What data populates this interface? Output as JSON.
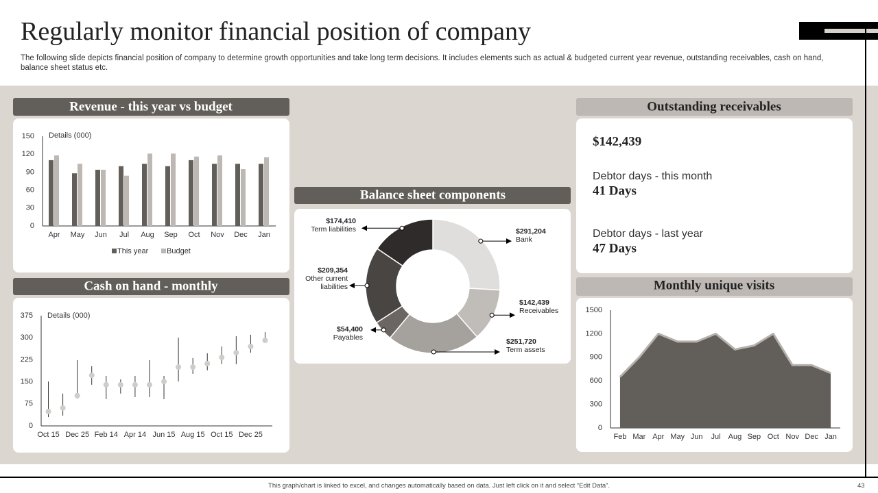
{
  "header": {
    "title": "Regularly monitor financial position of company",
    "subtitle": "The following slide depicts financial position of company to determine growth opportunities and take long term decisions. It includes elements such as actual & budgeted current year revenue, outstanding receivables, cash on hand, balance sheet status etc."
  },
  "chart_data": [
    {
      "type": "bar",
      "title": "Revenue - this year vs budget",
      "ylabel": "Details (000)",
      "categories": [
        "Apr",
        "May",
        "Jun",
        "Jul",
        "Aug",
        "Sep",
        "Oct",
        "Nov",
        "Dec",
        "Jan"
      ],
      "series": [
        {
          "name": "This year",
          "color": "#625e59",
          "values": [
            110,
            88,
            94,
            100,
            104,
            100,
            110,
            104,
            104,
            104
          ]
        },
        {
          "name": "Budget",
          "color": "#bdb8b3",
          "values": [
            118,
            104,
            94,
            84,
            121,
            121,
            116,
            118,
            95,
            115
          ]
        }
      ],
      "ylim": [
        0,
        150
      ],
      "yticks": [
        0,
        30,
        60,
        90,
        120,
        150
      ],
      "legend": "bottom"
    },
    {
      "type": "stock",
      "title": "Cash on hand - monthly",
      "ylabel": "Details (000)",
      "categories": [
        "Oct 15",
        null,
        "Dec 25",
        null,
        "Feb 14",
        null,
        "Apr 14",
        null,
        "Jun 15",
        null,
        "Aug 15",
        null,
        "Oct 15",
        null,
        "Dec 25",
        null
      ],
      "values": [
        49,
        61,
        103,
        172,
        140,
        140,
        140,
        140,
        151,
        200,
        200,
        212,
        233,
        249,
        270,
        291
      ],
      "high": [
        151,
        110,
        224,
        203,
        170,
        158,
        170,
        224,
        170,
        300,
        231,
        247,
        270,
        305,
        310,
        319
      ],
      "low": [
        30,
        35,
        93,
        140,
        91,
        110,
        98,
        98,
        91,
        151,
        177,
        189,
        210,
        210,
        249,
        284
      ],
      "color": "#d0ccc8",
      "ylim": [
        0,
        375
      ],
      "yticks": [
        0,
        75,
        150,
        225,
        300,
        375
      ]
    },
    {
      "type": "doughnut",
      "title": "Balance sheet components",
      "categories": [
        "Bank",
        "Receivables",
        "Term assets",
        "Payables",
        "Other current liabilities",
        "Term liabilities"
      ],
      "values": [
        291204,
        142439,
        251720,
        54400,
        209354,
        174410
      ],
      "value_labels": [
        "$291,204",
        "$142,439",
        "$251,720",
        "$54,400",
        "$209,354",
        "$174,410"
      ],
      "colors": [
        "#e0dedc",
        "#c0bcb8",
        "#a5a19c",
        "#6b6663",
        "#494543",
        "#2e2b2a"
      ]
    },
    {
      "type": "area",
      "title": "Monthly unique visits",
      "categories": [
        "Feb",
        "Mar",
        "Apr",
        "May",
        "Jun",
        "Jul",
        "Aug",
        "Sep",
        "Oct",
        "Nov",
        "Dec",
        "Jan"
      ],
      "values": [
        650,
        900,
        1200,
        1100,
        1100,
        1200,
        1000,
        1050,
        1200,
        800,
        800,
        700
      ],
      "color": "#625e59",
      "line_color": "#b5b0ab",
      "ylim": [
        0,
        1500
      ],
      "yticks": [
        0,
        300,
        600,
        900,
        1200,
        1500
      ]
    }
  ],
  "receivables": {
    "title": "Outstanding receivables",
    "amount": "$142,439",
    "items": [
      {
        "label": "Debtor days - this month",
        "value": "41 Days"
      },
      {
        "label": "Debtor days - last year",
        "value": "47 Days"
      }
    ]
  },
  "footer": {
    "note": "This graph/chart is linked to excel, and changes automatically based on data. Just left click on it and select “Edit Data”.",
    "page": 43
  }
}
